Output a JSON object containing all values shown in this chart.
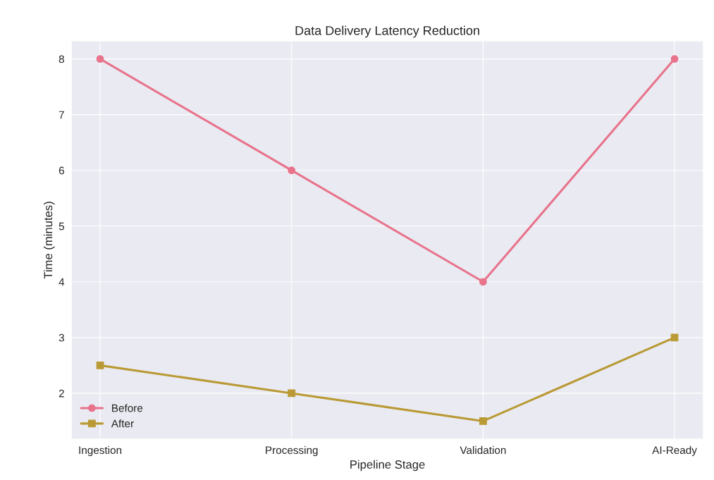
{
  "chart_data": {
    "type": "line",
    "title": "Data Delivery Latency Reduction",
    "xlabel": "Pipeline Stage",
    "ylabel": "Time (minutes)",
    "categories": [
      "Ingestion",
      "Processing",
      "Validation",
      "AI-Ready"
    ],
    "series": [
      {
        "name": "Before",
        "color": "#e8738b",
        "values": [
          8,
          6,
          4,
          8
        ],
        "marker": "circle"
      },
      {
        "name": "After",
        "color": "#b99a35",
        "values": [
          2.5,
          2,
          1.5,
          3
        ],
        "marker": "square"
      }
    ],
    "ylim": [
      1.175,
      8.325
    ],
    "yticks": [
      2,
      3,
      4,
      5,
      6,
      7,
      8
    ],
    "grid": true,
    "legend": "bottom left",
    "line_style": "solid"
  }
}
